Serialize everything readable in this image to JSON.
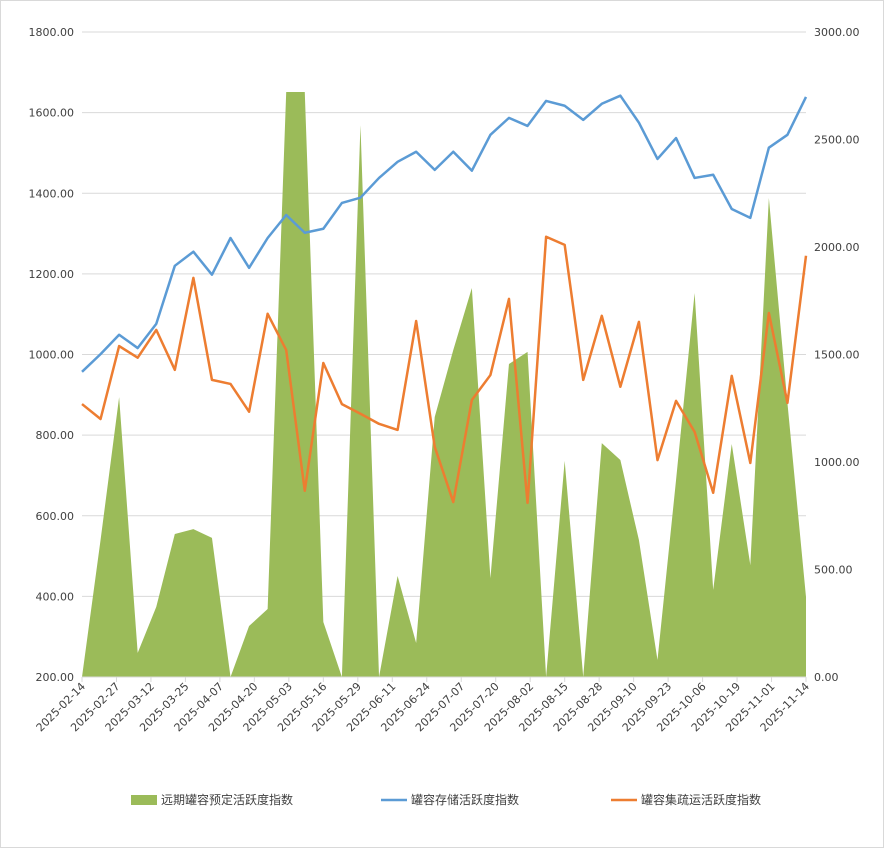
{
  "chart_data": {
    "type": "combo",
    "x": [
      "2025-02-14",
      "2025-02-21",
      "2025-02-28",
      "2025-03-07",
      "2025-03-14",
      "2025-03-21",
      "2025-03-28",
      "2025-04-04",
      "2025-04-11",
      "2025-04-18",
      "2025-04-25",
      "2025-05-02",
      "2025-05-09",
      "2025-05-16",
      "2025-05-23",
      "2025-05-30",
      "2025-06-06",
      "2025-06-13",
      "2025-06-20",
      "2025-06-27",
      "2025-07-04",
      "2025-07-11",
      "2025-07-18",
      "2025-07-25",
      "2025-08-01",
      "2025-08-08",
      "2025-08-15",
      "2025-08-22",
      "2025-08-29",
      "2025-09-05",
      "2025-09-12",
      "2025-09-19",
      "2025-09-26",
      "2025-10-03",
      "2025-10-10",
      "2025-10-17",
      "2025-10-24",
      "2025-10-31",
      "2025-11-07",
      "2025-11-14"
    ],
    "xlim": [
      "2025-02-14",
      "2025-11-14"
    ],
    "xticks": [
      "2025-02-14",
      "2025-02-27",
      "2025-03-12",
      "2025-03-25",
      "2025-04-07",
      "2025-04-20",
      "2025-05-03",
      "2025-05-16",
      "2025-05-29",
      "2025-06-11",
      "2025-06-24",
      "2025-07-07",
      "2025-07-20",
      "2025-08-02",
      "2025-08-15",
      "2025-08-28",
      "2025-09-10",
      "2025-09-23",
      "2025-10-06",
      "2025-10-19",
      "2025-11-01",
      "2025-11-14"
    ],
    "series": [
      {
        "name": "远期罐容预定活跃度指数",
        "type": "area",
        "axis": "y2",
        "color": "#9bbb59",
        "values": [
          0,
          637,
          1302,
          112,
          326,
          665,
          688,
          647,
          0,
          237,
          316,
          2721,
          2721,
          256,
          0,
          2567,
          0,
          470,
          158,
          1209,
          1521,
          1809,
          460,
          1456,
          1512,
          0,
          1005,
          0,
          1088,
          1009,
          637,
          79,
          916,
          1786,
          405,
          1084,
          521,
          2228,
          1274,
          372
        ]
      },
      {
        "name": "罐容存储活跃度指数",
        "type": "line",
        "axis": "y",
        "color": "#5b9bd5",
        "values": [
          957,
          1001,
          1049,
          1016,
          1076,
          1220,
          1255,
          1198,
          1289,
          1215,
          1289,
          1346,
          1302,
          1312,
          1376,
          1389,
          1438,
          1478,
          1503,
          1458,
          1503,
          1456,
          1545,
          1587,
          1567,
          1629,
          1617,
          1582,
          1622,
          1642,
          1575,
          1485,
          1537,
          1438,
          1446,
          1361,
          1339,
          1513,
          1545,
          1639
        ]
      },
      {
        "name": "罐容集疏运活跃度指数",
        "type": "line",
        "axis": "y",
        "color": "#ed7d31",
        "values": [
          877,
          840,
          1021,
          992,
          1061,
          962,
          1190,
          937,
          927,
          858,
          1101,
          1011,
          662,
          979,
          877,
          853,
          828,
          813,
          1083,
          771,
          634,
          887,
          949,
          1138,
          632,
          1292,
          1272,
          937,
          1096,
          920,
          1081,
          738,
          885,
          808,
          657,
          947,
          731,
          1103,
          880,
          1245
        ]
      }
    ],
    "ylim": [
      200,
      1800
    ],
    "yticks": [
      {
        "value": 200,
        "label": "200.00"
      },
      {
        "value": 400,
        "label": "400.00"
      },
      {
        "value": 600,
        "label": "600.00"
      },
      {
        "value": 800,
        "label": "800.00"
      },
      {
        "value": 1000,
        "label": "1000.00"
      },
      {
        "value": 1200,
        "label": "1200.00"
      },
      {
        "value": 1400,
        "label": "1400.00"
      },
      {
        "value": 1600,
        "label": "1600.00"
      },
      {
        "value": 1800,
        "label": "1800.00"
      }
    ],
    "y2lim": [
      0,
      3000
    ],
    "y2ticks": [
      {
        "value": 0,
        "label": "0.00"
      },
      {
        "value": 500,
        "label": "500.00"
      },
      {
        "value": 1000,
        "label": "1000.00"
      },
      {
        "value": 1500,
        "label": "1500.00"
      },
      {
        "value": 2000,
        "label": "2000.00"
      },
      {
        "value": 2500,
        "label": "2500.00"
      },
      {
        "value": 3000,
        "label": "3000.00"
      }
    ],
    "grid": true,
    "legend": "bottom"
  }
}
